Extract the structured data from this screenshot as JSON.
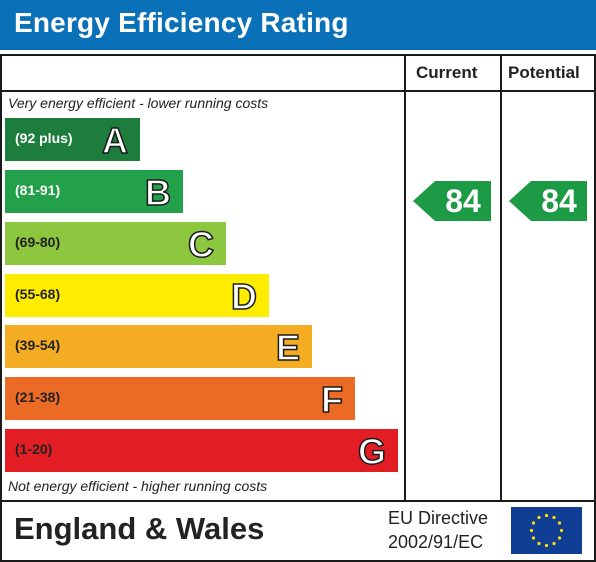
{
  "title": "Energy Efficiency Rating",
  "columns": {
    "current": "Current",
    "potential": "Potential"
  },
  "top_note": "Very energy efficient - lower running costs",
  "bottom_note": "Not energy efficient - higher running costs",
  "bands": [
    {
      "range": "(92 plus)",
      "letter": "A",
      "color": "#1c7d3c"
    },
    {
      "range": "(81-91)",
      "letter": "B",
      "color": "#22a04a"
    },
    {
      "range": "(69-80)",
      "letter": "C",
      "color": "#8dc63f"
    },
    {
      "range": "(55-68)",
      "letter": "D",
      "color": "#ffed00"
    },
    {
      "range": "(39-54)",
      "letter": "E",
      "color": "#f4ad22"
    },
    {
      "range": "(21-38)",
      "letter": "F",
      "color": "#eb6a24"
    },
    {
      "range": "(1-20)",
      "letter": "G",
      "color": "#e31d24"
    }
  ],
  "current_rating": "84",
  "potential_rating": "84",
  "footer": {
    "region": "England & Wales",
    "directive_line1": "EU Directive",
    "directive_line2": "2002/91/EC"
  }
}
